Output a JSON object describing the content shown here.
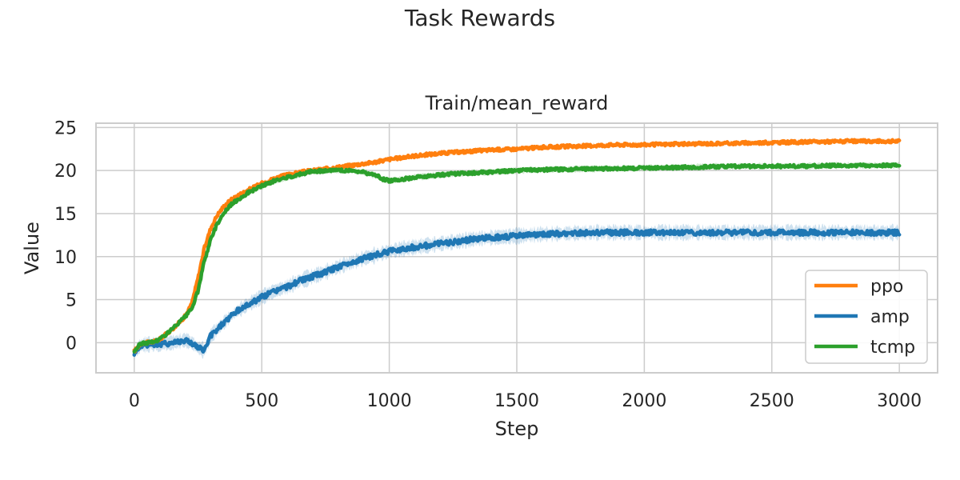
{
  "figure": {
    "title": "Task Rewards"
  },
  "chart_data": {
    "type": "line",
    "title": "Train/mean_reward",
    "xlabel": "Step",
    "ylabel": "Value",
    "xlim": [
      -150,
      3150
    ],
    "ylim": [
      -3.5,
      25.5
    ],
    "xticks": [
      0,
      500,
      1000,
      1500,
      2000,
      2500,
      3000
    ],
    "yticks": [
      0,
      5,
      10,
      15,
      20,
      25
    ],
    "grid": true,
    "legend": {
      "position": "lower-right",
      "entries": [
        "ppo",
        "amp",
        "tcmp"
      ]
    },
    "series": [
      {
        "name": "ppo",
        "color": "#ff7f0e",
        "x": [
          0,
          25,
          50,
          75,
          100,
          125,
          150,
          175,
          200,
          225,
          250,
          275,
          300,
          325,
          350,
          375,
          400,
          450,
          500,
          550,
          600,
          650,
          700,
          750,
          800,
          850,
          900,
          950,
          1000,
          1100,
          1200,
          1300,
          1400,
          1500,
          1600,
          1700,
          1800,
          1900,
          2000,
          2200,
          2400,
          2600,
          2800,
          3000
        ],
        "y": [
          -1.0,
          -0.1,
          0.0,
          0.1,
          0.4,
          1.0,
          1.6,
          2.3,
          3.1,
          4.5,
          7.5,
          11.0,
          13.3,
          14.8,
          15.8,
          16.5,
          17.0,
          17.8,
          18.5,
          19.1,
          19.5,
          19.8,
          20.0,
          20.2,
          20.4,
          20.6,
          20.8,
          21.0,
          21.3,
          21.7,
          22.0,
          22.2,
          22.4,
          22.5,
          22.7,
          22.8,
          22.9,
          23.0,
          23.0,
          23.1,
          23.2,
          23.3,
          23.4,
          23.4
        ]
      },
      {
        "name": "amp",
        "color": "#1f77b4",
        "x": [
          0,
          25,
          50,
          75,
          100,
          150,
          200,
          225,
          250,
          275,
          300,
          350,
          400,
          450,
          500,
          550,
          600,
          650,
          700,
          750,
          800,
          850,
          900,
          950,
          1000,
          1050,
          1100,
          1150,
          1200,
          1250,
          1300,
          1350,
          1400,
          1450,
          1500,
          1550,
          1600,
          1700,
          1800,
          1900,
          2000,
          2200,
          2400,
          2600,
          2800,
          3000
        ],
        "y": [
          -1.2,
          -0.3,
          -0.2,
          -0.2,
          -0.2,
          0.0,
          0.3,
          0.0,
          -0.6,
          -0.9,
          0.8,
          2.3,
          3.6,
          4.5,
          5.3,
          6.0,
          6.5,
          7.2,
          7.7,
          8.2,
          8.8,
          9.3,
          9.8,
          10.2,
          10.6,
          10.9,
          11.1,
          11.3,
          11.5,
          11.7,
          11.9,
          12.1,
          12.2,
          12.3,
          12.4,
          12.5,
          12.6,
          12.7,
          12.8,
          12.8,
          12.8,
          12.8,
          12.8,
          12.8,
          12.8,
          12.8
        ]
      },
      {
        "name": "tcmp",
        "color": "#2ca02c",
        "x": [
          0,
          25,
          50,
          75,
          100,
          125,
          150,
          175,
          200,
          225,
          250,
          275,
          300,
          325,
          350,
          375,
          400,
          450,
          500,
          550,
          600,
          650,
          700,
          750,
          800,
          850,
          900,
          950,
          975,
          1000,
          1050,
          1100,
          1200,
          1300,
          1400,
          1500,
          1600,
          1800,
          2000,
          2200,
          2400,
          2600,
          2800,
          3000
        ],
        "y": [
          -1.0,
          -0.1,
          0.0,
          0.1,
          0.4,
          1.0,
          1.6,
          2.3,
          3.0,
          3.9,
          6.0,
          9.5,
          12.0,
          13.8,
          15.0,
          15.9,
          16.5,
          17.5,
          18.2,
          18.8,
          19.2,
          19.6,
          19.9,
          20.0,
          20.0,
          20.0,
          19.8,
          19.4,
          19.0,
          18.8,
          19.0,
          19.2,
          19.5,
          19.7,
          19.8,
          20.0,
          20.1,
          20.2,
          20.3,
          20.4,
          20.5,
          20.5,
          20.6,
          20.6
        ]
      }
    ]
  }
}
